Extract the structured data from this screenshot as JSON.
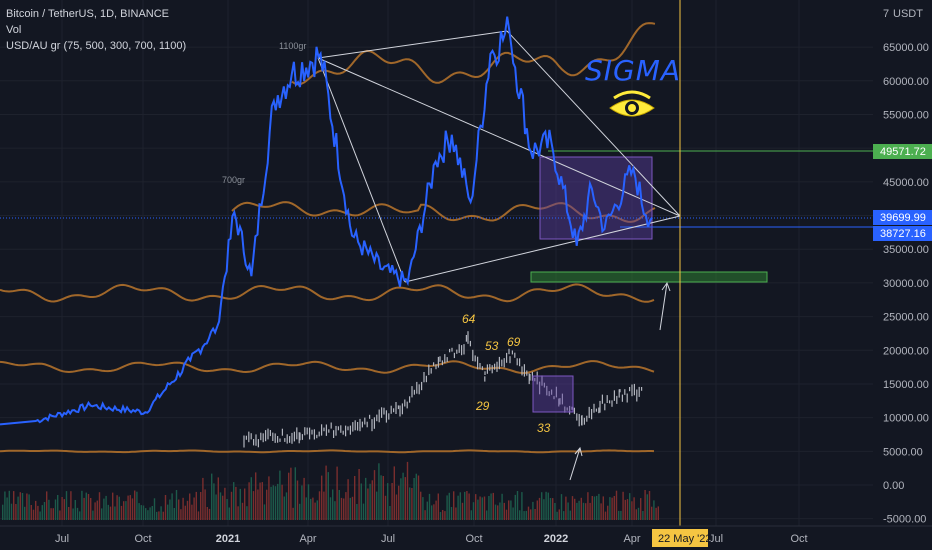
{
  "legend": {
    "symbol": "Bitcoin / TetherUS, 1D, BINANCE",
    "volume": "Vol",
    "indicator": "USD/AU gr (75, 500, 300, 700, 1100)"
  },
  "price_axis": {
    "unit": "USDT",
    "currency_prefix": "7",
    "ticks": [
      "65000.00",
      "60000.00",
      "55000.00",
      "50000.00",
      "45000.00",
      "40000.00",
      "35000.00",
      "30000.00",
      "25000.00",
      "20000.00",
      "15000.00",
      "10000.00",
      "5000.00",
      "0.00",
      "-5000.00"
    ]
  },
  "price_labels": {
    "green": "49571.72",
    "current": "39699.99",
    "blue": "38727.16"
  },
  "time_axis": {
    "ticks": [
      "Jul",
      "Oct",
      "2021",
      "Apr",
      "Jul",
      "Oct",
      "2022",
      "Apr",
      "Jul",
      "Oct"
    ],
    "bold": [
      "2021",
      "2022"
    ],
    "cursor_date": "22 May '22"
  },
  "annotations": {
    "sigma": "SIGMA",
    "gr_1100": "1100gr",
    "gr_700": "700gr",
    "numbers": [
      "64",
      "53",
      "69",
      "29",
      "33"
    ]
  },
  "colors": {
    "background": "#131722",
    "price_line": "#2962ff",
    "gold_lines": "#a0672a",
    "gray_bars": "#b2b5be",
    "green_level": "#4caf50",
    "cursor": "#f5c542",
    "box": "#5b3fa0"
  },
  "chart_data": {
    "type": "line",
    "title": "Bitcoin / TetherUS, 1D, BINANCE",
    "ylabel": "USDT",
    "ylim": [
      -5000,
      70000
    ],
    "x": [
      "2020-06-01",
      "2020-08-01",
      "2020-10-01",
      "2020-11-20",
      "2020-12-20",
      "2021-01-08",
      "2021-01-27",
      "2021-02-21",
      "2021-03-13",
      "2021-04-14",
      "2021-05-19",
      "2021-06-22",
      "2021-07-20",
      "2021-08-20",
      "2021-09-07",
      "2021-09-28",
      "2021-10-20",
      "2021-11-10",
      "2021-12-04",
      "2021-12-27",
      "2022-01-24",
      "2022-02-10",
      "2022-02-24",
      "2022-03-28",
      "2022-04-11",
      "2022-04-18"
    ],
    "series": [
      {
        "values": [
          9500,
          11800,
          10800,
          18500,
          23500,
          40500,
          31000,
          57000,
          61000,
          64000,
          37000,
          32000,
          30000,
          48000,
          52000,
          42000,
          64000,
          67500,
          49500,
          50800,
          35500,
          44000,
          38000,
          47000,
          40000,
          39700
        ]
      },
      {
        "values": [
          null,
          null,
          null,
          null,
          null,
          null,
          null,
          null,
          null,
          null,
          null,
          null,
          null,
          null,
          null,
          null,
          null,
          null,
          null,
          null,
          null,
          null,
          null,
          null,
          null,
          null
        ]
      }
    ],
    "gold_levels_approx": [
      5000,
      18500,
      30000,
      41000,
      64000
    ],
    "green_level": 49571.72,
    "horizontal_levels": [
      39699.99,
      38727.16
    ],
    "annotation_numbers": [
      "64",
      "53",
      "69",
      "29",
      "33"
    ]
  }
}
